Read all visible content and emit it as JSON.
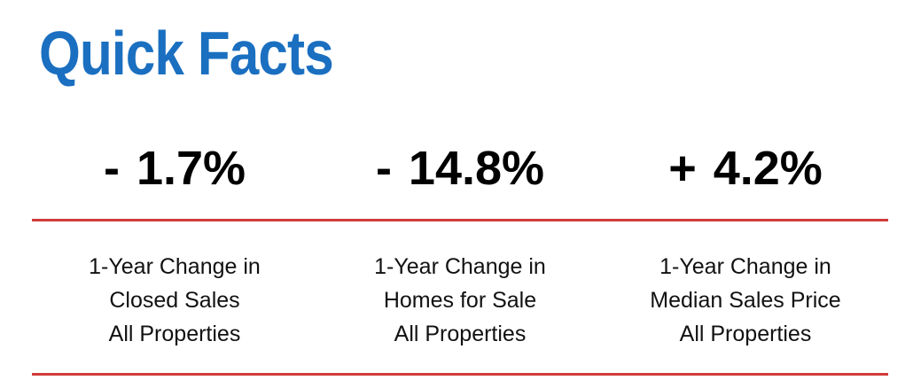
{
  "title": "Quick Facts",
  "colors": {
    "title": "#1a6fc0",
    "divider": "#d23a3a",
    "text": "#000000"
  },
  "facts": [
    {
      "value": "- 1.7%",
      "label_lines": [
        "1-Year Change in",
        "Closed Sales",
        "All Properties"
      ]
    },
    {
      "value": "- 14.8%",
      "label_lines": [
        "1-Year Change in",
        "Homes for Sale",
        "All Properties"
      ]
    },
    {
      "value": "+ 4.2%",
      "label_lines": [
        "1-Year Change in",
        "Median Sales Price",
        "All Properties"
      ]
    }
  ]
}
